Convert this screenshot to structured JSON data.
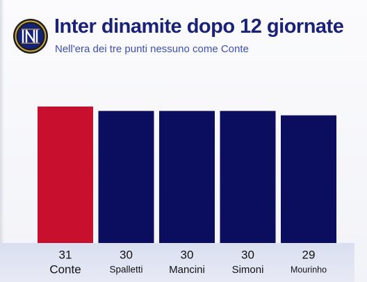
{
  "header": {
    "title": "Inter dinamite dopo 12 giornate",
    "subtitle": "Nell'era dei tre punti nessuno come Conte"
  },
  "colors": {
    "highlight": "#c8102e",
    "bar": "#0b0e5e",
    "title": "#1a2179",
    "subtitle": "#3d4eb3"
  },
  "chart_data": {
    "type": "bar",
    "title": "Inter dinamite dopo 12 giornate",
    "subtitle": "Nell'era dei tre punti nessuno come Conte",
    "categories": [
      "Conte",
      "Spalletti",
      "Mancini",
      "Simoni",
      "Mourinho"
    ],
    "values": [
      31,
      30,
      30,
      30,
      29
    ],
    "highlight": "Conte",
    "ylim": [
      0,
      31
    ],
    "grid": false,
    "legend": "none"
  }
}
